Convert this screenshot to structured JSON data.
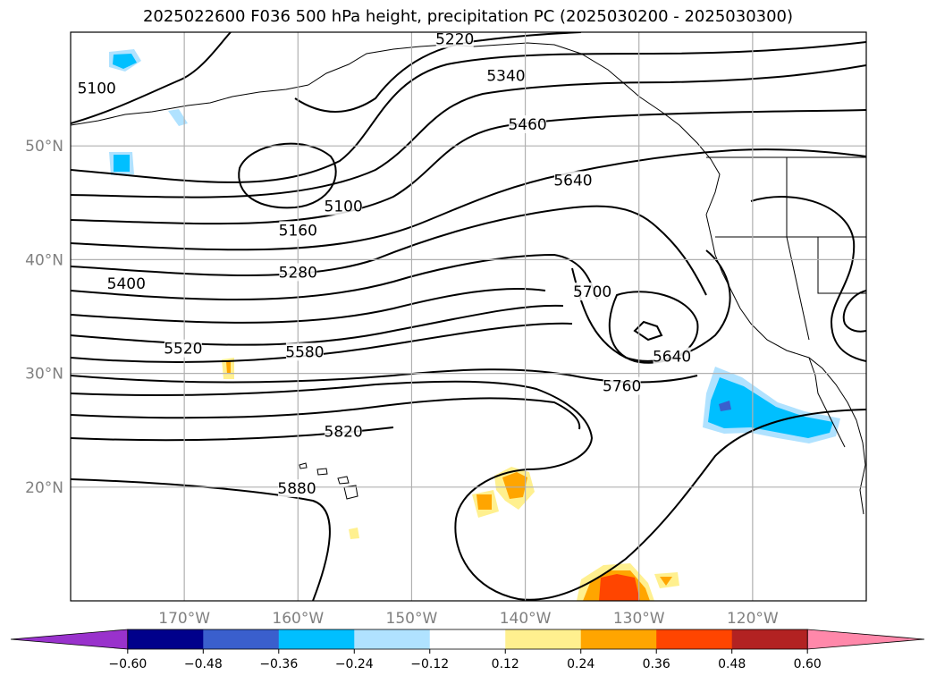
{
  "title": "2025022600 F036 500 hPa height, precipitation PC (2025030200 - 2025030300)",
  "map": {
    "lon_range": [
      -180,
      -110
    ],
    "lat_range": [
      10,
      60
    ],
    "lon_ticks": [
      {
        "lon": -170,
        "label": "170°W"
      },
      {
        "lon": -160,
        "label": "160°W"
      },
      {
        "lon": -150,
        "label": "150°W"
      },
      {
        "lon": -140,
        "label": "140°W"
      },
      {
        "lon": -130,
        "label": "130°W"
      },
      {
        "lon": -120,
        "label": "120°W"
      }
    ],
    "lat_ticks": [
      {
        "lat": 20,
        "label": "20°N"
      },
      {
        "lat": 30,
        "label": "30°N"
      },
      {
        "lat": 40,
        "label": "40°N"
      },
      {
        "lat": 50,
        "label": "50°N"
      }
    ],
    "grid": true
  },
  "contour_labels": [
    {
      "text": "5100",
      "lon": -177.7,
      "lat": 55.1
    },
    {
      "text": "5220",
      "lon": -146.2,
      "lat": 59.4
    },
    {
      "text": "5340",
      "lon": -141.7,
      "lat": 56.2
    },
    {
      "text": "5460",
      "lon": -139.8,
      "lat": 51.9
    },
    {
      "text": "5640",
      "lon": -135.8,
      "lat": 47.0
    },
    {
      "text": "5100",
      "lon": -156.0,
      "lat": 44.7
    },
    {
      "text": "5160",
      "lon": -160.0,
      "lat": 42.6
    },
    {
      "text": "5280",
      "lon": -160.0,
      "lat": 38.9
    },
    {
      "text": "5400",
      "lon": -175.1,
      "lat": 37.9
    },
    {
      "text": "5700",
      "lon": -134.1,
      "lat": 37.2
    },
    {
      "text": "5520",
      "lon": -170.1,
      "lat": 32.2
    },
    {
      "text": "5580",
      "lon": -159.4,
      "lat": 31.9
    },
    {
      "text": "5640",
      "lon": -127.1,
      "lat": 31.5
    },
    {
      "text": "5760",
      "lon": -131.5,
      "lat": 28.9
    },
    {
      "text": "5820",
      "lon": -156.0,
      "lat": 24.9
    },
    {
      "text": "5880",
      "lon": -160.1,
      "lat": 19.9
    }
  ],
  "colorbar": {
    "labels": [
      "−0.60",
      "−0.48",
      "−0.36",
      "−0.24",
      "−0.12",
      "0.12",
      "0.24",
      "0.36",
      "0.48",
      "0.60"
    ],
    "colors": [
      "#9932cc",
      "#00008b",
      "#3a5fcd",
      "#00bfff",
      "#b0e2ff",
      "#ffffff",
      "#fff08f",
      "#ffa500",
      "#ff4500",
      "#b22222",
      "#ff88aa"
    ]
  }
}
